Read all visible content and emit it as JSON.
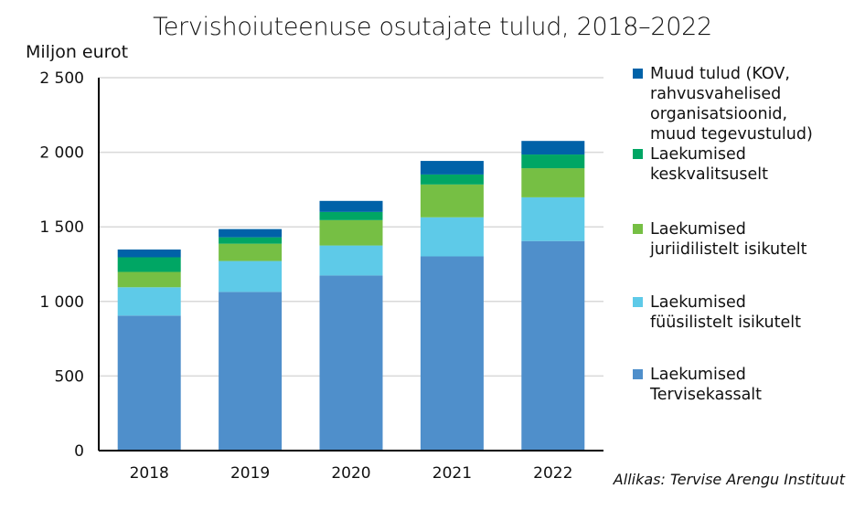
{
  "chart_data": {
    "type": "bar",
    "stacked": true,
    "title": "Tervishoiuteenuse osutajate tulud, 2018–2022",
    "ylabel": "Miljon eurot",
    "xlabel": "",
    "ylim": [
      0,
      2500
    ],
    "yticks": [
      0,
      500,
      1000,
      1500,
      2000,
      2500
    ],
    "ytick_labels": [
      "0",
      "500",
      "1 000",
      "1 500",
      "2 000",
      "2 500"
    ],
    "grid": true,
    "legend_position": "right",
    "categories": [
      "2018",
      "2019",
      "2020",
      "2021",
      "2022"
    ],
    "series": [
      {
        "name": "Laekumised Tervisekassalt",
        "color": "#4f8fcb",
        "values": [
          905,
          1064,
          1174,
          1302,
          1405
        ]
      },
      {
        "name": "Laekumised füüsilistelt isikutelt",
        "color": "#5ecae8",
        "values": [
          190,
          207,
          201,
          262,
          293
        ]
      },
      {
        "name": "Laekumised juriidilistelt isikutelt",
        "color": "#76bf44",
        "values": [
          103,
          116,
          170,
          220,
          195
        ]
      },
      {
        "name": "Laekumised keskvalitsuselt",
        "color": "#00a664",
        "values": [
          98,
          43,
          55,
          67,
          92
        ]
      },
      {
        "name": "Muud tulud (KOV, rahvusvahelised organisatsioonid, muud tegevustulud)",
        "color": "#0062a8",
        "values": [
          52,
          55,
          74,
          91,
          91
        ]
      }
    ],
    "source": "Allikas: Tervise Arengu Instituut"
  }
}
